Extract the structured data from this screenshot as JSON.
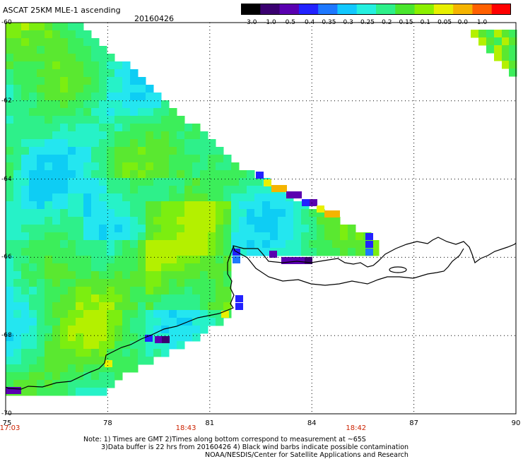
{
  "header": {
    "title": "ASCAT 25KM MLE-1 ascending",
    "date": "20160426"
  },
  "colorbar": {
    "labels": [
      "-3.0",
      "-1.0",
      "-0.5",
      "-0.4",
      "-0.35",
      "-0.3",
      "-0.25",
      "-0.2",
      "-0.15",
      "-0.1",
      "-0.05",
      "0.0",
      "1.0"
    ],
    "colors": [
      "#000000",
      "#3a0070",
      "#5a00b0",
      "#2222ff",
      "#1e78ff",
      "#12c8ff",
      "#25f0e0",
      "#2ef08a",
      "#4ae62e",
      "#8cf000",
      "#e8f000",
      "#f5b400",
      "#ff6000",
      "#ff0000"
    ]
  },
  "axes": {
    "lat_labels": [
      "-60",
      "-62",
      "-64",
      "-66",
      "-68",
      "-70"
    ],
    "lon_labels": [
      "75",
      "78",
      "81",
      "84",
      "87",
      "90"
    ],
    "time_labels": [
      {
        "text": "17:03",
        "lon": 75
      },
      {
        "text": "18:43",
        "lon": 80.3
      },
      {
        "text": "18:42",
        "lon": 85.3
      }
    ]
  },
  "notes": {
    "line1": "Note: 1) Times are GMT 2)Times along bottom correspond to measurement at ~65S",
    "line2": "3)Data buffer is 22 hrs from 20160426 4) Black wind barbs indicate possible contamination",
    "line3": "NOAA/NESDIS/Center for Satellite Applications and Research"
  }
}
